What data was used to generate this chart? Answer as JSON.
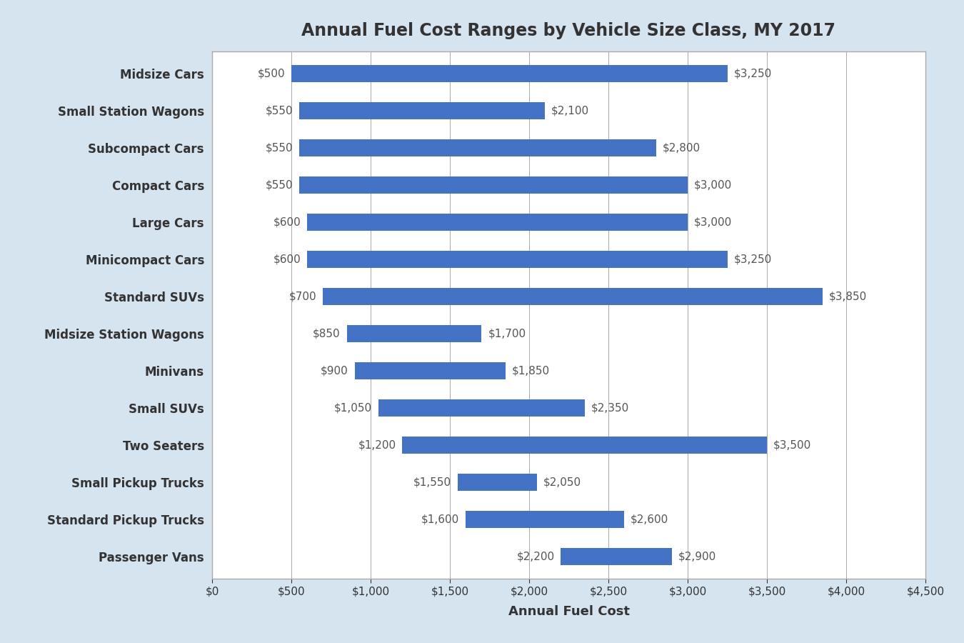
{
  "title": "Annual Fuel Cost Ranges by Vehicle Size Class, MY 2017",
  "xlabel": "Annual Fuel Cost",
  "categories": [
    "Passenger Vans",
    "Standard Pickup Trucks",
    "Small Pickup Trucks",
    "Two Seaters",
    "Small SUVs",
    "Minivans",
    "Midsize Station Wagons",
    "Standard SUVs",
    "Minicompact Cars",
    "Large Cars",
    "Compact Cars",
    "Subcompact Cars",
    "Small Station Wagons",
    "Midsize Cars"
  ],
  "min_values": [
    2200,
    1600,
    1550,
    1200,
    1050,
    900,
    850,
    700,
    600,
    600,
    550,
    550,
    550,
    500
  ],
  "max_values": [
    2900,
    2600,
    2050,
    3500,
    2350,
    1850,
    1700,
    3850,
    3250,
    3000,
    3000,
    2800,
    2100,
    3250
  ],
  "bar_color": "#4472C4",
  "background_color": "#D6E4F0",
  "plot_bg_color": "#FFFFFF",
  "grid_color": "#AAAAAA",
  "border_color": "#AAAAAA",
  "xlim": [
    0,
    4500
  ],
  "xticks": [
    0,
    500,
    1000,
    1500,
    2000,
    2500,
    3000,
    3500,
    4000,
    4500
  ],
  "title_fontsize": 17,
  "label_fontsize": 12,
  "tick_fontsize": 11,
  "annotation_fontsize": 11,
  "bar_height": 0.45
}
